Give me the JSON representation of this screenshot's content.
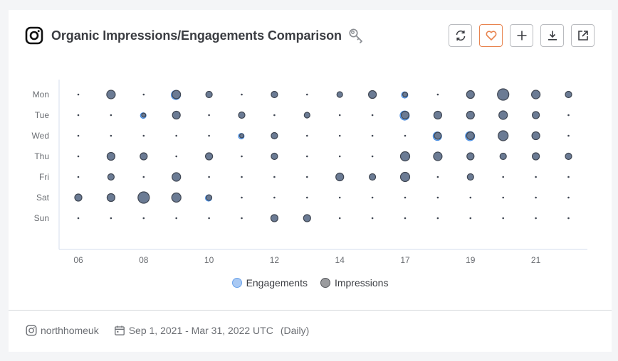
{
  "header": {
    "title": "Organic Impressions/Engagements Comparison",
    "platform_icon": "instagram-icon",
    "extra_icon": "key-icon"
  },
  "toolbar": {
    "buttons": [
      {
        "name": "refresh-button",
        "icon": "refresh-icon"
      },
      {
        "name": "favorite-button",
        "icon": "heart-icon"
      },
      {
        "name": "add-button",
        "icon": "plus-icon"
      },
      {
        "name": "download-button",
        "icon": "download-icon"
      },
      {
        "name": "open-external-button",
        "icon": "external-link-icon"
      }
    ],
    "accent_color": "#e8844f"
  },
  "legend": {
    "engagements": "Engagements",
    "impressions": "Impressions"
  },
  "footer": {
    "account": "northhomeuk",
    "date_range": "Sep 1, 2021 - Mar 31, 2022 UTC",
    "frequency": "(Daily)"
  },
  "colors": {
    "engagements": "#7fb2ef",
    "impressions": "#6b7b94",
    "impressions_stroke": "#3f4652",
    "axis": "#d5dcec",
    "tick_text": "#6b6e73"
  },
  "chart_data": {
    "type": "scatter",
    "subtype": "bubble-punchcard",
    "title": "Organic Impressions/Engagements Comparison",
    "xlabel": "",
    "ylabel": "",
    "x": [
      "06",
      "07",
      "08",
      "09",
      "10",
      "11",
      "12",
      "13",
      "14",
      "16",
      "17",
      "18",
      "19",
      "20",
      "21",
      "22"
    ],
    "x_tick_labels": [
      "06",
      "08",
      "10",
      "12",
      "14",
      "17",
      "19",
      "21"
    ],
    "y": [
      "Mon",
      "Tue",
      "Wed",
      "Thu",
      "Fri",
      "Sat",
      "Sun"
    ],
    "grid": false,
    "legend_position": "bottom",
    "size_unit": "relative bubble radius (px)",
    "series": [
      {
        "name": "Impressions",
        "values": [
          [
            1.5,
            6,
            1.5,
            6.5,
            4.5,
            1.5,
            4.5,
            1.5,
            4,
            5.5,
            4,
            1.5,
            5.5,
            8,
            6,
            4.5
          ],
          [
            1.5,
            1.5,
            3.5,
            5.5,
            1.5,
            4.5,
            1.5,
            4,
            1.5,
            1.5,
            6,
            5.5,
            5.5,
            6,
            5,
            1.5
          ],
          [
            1.5,
            1.5,
            1.5,
            1.5,
            1.5,
            3.5,
            4.5,
            1.5,
            1.5,
            1.5,
            1.5,
            5.5,
            6,
            7,
            5.5,
            1.5
          ],
          [
            1.5,
            5.5,
            5,
            1.5,
            5,
            1.5,
            4.5,
            1.5,
            1.5,
            1.5,
            6.5,
            6,
            5,
            4.5,
            5,
            4.5
          ],
          [
            1.5,
            4.5,
            1.5,
            6,
            1.5,
            1.5,
            1.5,
            1.5,
            5.5,
            4.5,
            6.5,
            1.5,
            4.5,
            1.5,
            1.5,
            1.5
          ],
          [
            5,
            5.5,
            8,
            6.5,
            4.5,
            1.5,
            1.5,
            1.5,
            1.5,
            1.5,
            1.5,
            1.5,
            1.5,
            1.5,
            1.5,
            1.5
          ],
          [
            1.5,
            1.5,
            1.5,
            1.5,
            1.5,
            1.5,
            5,
            5,
            1.5,
            1.5,
            1.5,
            1.5,
            1.5,
            1.5,
            1.5,
            1.5
          ]
        ]
      },
      {
        "name": "Engagements",
        "values": [
          [
            0,
            0,
            0,
            6.5,
            0,
            0,
            0,
            0,
            0,
            0,
            4.5,
            0,
            0,
            0,
            0,
            0
          ],
          [
            0,
            0,
            4,
            0,
            0,
            0,
            0,
            0,
            0,
            0,
            6.5,
            0,
            0,
            0,
            0,
            0
          ],
          [
            0,
            0,
            0,
            0,
            0,
            4,
            0,
            0,
            0,
            0,
            0,
            6,
            6.5,
            0,
            0,
            0
          ],
          [
            0,
            0,
            0,
            0,
            0,
            0,
            0,
            0,
            0,
            0,
            0,
            0,
            0,
            0,
            0,
            0
          ],
          [
            0,
            0,
            0,
            0,
            0,
            0,
            0,
            0,
            0,
            0,
            0,
            0,
            0,
            0,
            0,
            0
          ],
          [
            0,
            0,
            0,
            0,
            4.5,
            0,
            0,
            0,
            0,
            0,
            0,
            0,
            0,
            0,
            0,
            0
          ],
          [
            0,
            0,
            0,
            0,
            0,
            0,
            0,
            0,
            0,
            0,
            0,
            0,
            0,
            0,
            0,
            0
          ]
        ]
      }
    ]
  }
}
